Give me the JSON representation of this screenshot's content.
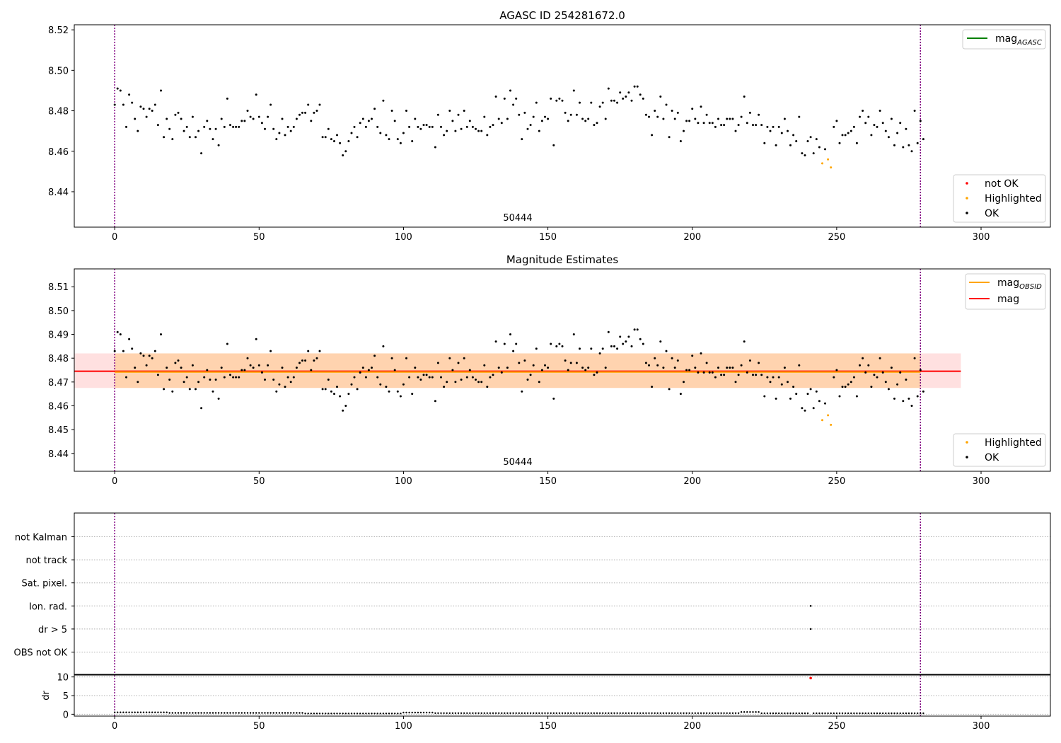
{
  "chart_data": [
    {
      "type": "scatter",
      "title": "AGASC ID 254281672.0",
      "xlim": [
        -14,
        324
      ],
      "ylim": [
        8.4225,
        8.5225
      ],
      "xticks": [
        0,
        50,
        100,
        150,
        200,
        250,
        300
      ],
      "yticks": [
        8.44,
        8.46,
        8.48,
        8.5,
        8.52
      ],
      "ytick_labels": [
        "8.44",
        "8.46",
        "8.48",
        "8.50",
        "8.52"
      ],
      "obsid_boundaries": [
        0,
        279
      ],
      "obsid_label": {
        "text": "50444",
        "x": 139
      },
      "legend_lines": [
        {
          "label": "mag",
          "sub": "AGASC",
          "color": "#008000"
        }
      ],
      "legend_points": [
        {
          "label": "not OK",
          "color": "#ff0000"
        },
        {
          "label": "Highlighted",
          "color": "#ffa500"
        },
        {
          "label": "OK",
          "color": "#000000"
        }
      ],
      "series": [
        {
          "name": "OK",
          "color": "#000000",
          "points": "0:8.483,1:8.491,2:8.490,3:8.483,4:8.472,5:8.488,6:8.484,7:8.476,8:8.470,9:8.482,10:8.481,11:8.477,12:8.481,13:8.480,14:8.483,15:8.473,16:8.490,17:8.467,18:8.476,19:8.471,20:8.466,21:8.478,22:8.479,23:8.476,24:8.470,25:8.472,26:8.467,27:8.477,28:8.467,29:8.470,30:8.459,31:8.472,32:8.475,33:8.471,34:8.466,35:8.471,36:8.463,37:8.476,38:8.472,39:8.486,40:8.473,41:8.472,42:8.472,43:8.472,44:8.475,45:8.475,46:8.480,47:8.477,48:8.476,49:8.488,50:8.477,51:8.474,52:8.471,53:8.477,54:8.483,55:8.471,56:8.466,57:8.469,58:8.476,59:8.468,60:8.472,61:8.470,62:8.472,63:8.476,64:8.478,65:8.479,66:8.479,67:8.483,68:8.475,69:8.479,70:8.480,71:8.483,72:8.467,73:8.467,74:8.471,75:8.466,76:8.465,77:8.468,78:8.464,79:8.458,80:8.460,81:8.465,82:8.469,83:8.472,84:8.467,85:8.474,86:8.476,87:8.472,88:8.475,89:8.476,90:8.481,91:8.472,92:8.469,93:8.485,94:8.468,95:8.466,96:8.480,97:8.475,98:8.466,99:8.464,100:8.469,101:8.480,102:8.472,103:8.465,104:8.476,105:8.472,106:8.471,107:8.473,108:8.473,109:8.472,110:8.472,111:8.462,112:8.478,113:8.472,114:8.468,115:8.470,116:8.480,117:8.475,118:8.470,119:8.478,120:8.471,121:8.480,122:8.472,123:8.475,124:8.472,125:8.471,126:8.470,127:8.470,128:8.477,129:8.468,130:8.472,131:8.473,132:8.487,133:8.476,134:8.474,135:8.486,136:8.476,137:8.490,138:8.483,139:8.486,140:8.478,141:8.466,142:8.479,143:8.471,144:8.473,145:8.477,146:8.484,147:8.470,148:8.475,149:8.477,150:8.476,151:8.486,152:8.463,153:8.485,154:8.486,155:8.485,156:8.479,157:8.475,158:8.478,159:8.490,160:8.478,161:8.484,162:8.476,163:8.475,164:8.476,165:8.484,166:8.473,167:8.474,168:8.482,169:8.484,170:8.476,171:8.491,172:8.485,173:8.485,174:8.484,175:8.489,176:8.486,177:8.487,178:8.489,179:8.485,180:8.492,181:8.492,182:8.488,183:8.486,184:8.478,185:8.477,186:8.468,187:8.480,188:8.477,189:8.487,190:8.476,191:8.483,192:8.467,193:8.480,194:8.476,195:8.479,196:8.465,197:8.470,198:8.475,199:8.475,200:8.481,201:8.476,202:8.474,203:8.482,204:8.474,205:8.478,206:8.474,207:8.474,208:8.472,209:8.476,210:8.473,211:8.473,212:8.476,213:8.476,214:8.476,215:8.470,216:8.473,217:8.477,218:8.487,219:8.474,220:8.479,221:8.473,222:8.473,223:8.478,224:8.473,225:8.464,226:8.472,227:8.470,228:8.472,229:8.463,230:8.472,231:8.469,232:8.476,233:8.470,234:8.463,235:8.468,236:8.465,237:8.477,238:8.459,239:8.458,240:8.465,241:8.467,242:8.459,243:8.466,244:8.462,246:8.461,249:8.472,250:8.475,251:8.464,252:8.468,253:8.468,254:8.469,255:8.470,256:8.472,257:8.464,258:8.477,259:8.480,260:8.474,261:8.477,262:8.468,263:8.473,264:8.472,265:8.480,266:8.474,267:8.470,268:8.467,269:8.476,270:8.463,271:8.469,272:8.474,273:8.462,274:8.471,275:8.463,276:8.460,277:8.480,278:8.464,279:8.475,280:8.466"
        },
        {
          "name": "Highlighted",
          "color": "#ffa500",
          "points": "245:8.454,247:8.456,248:8.452"
        }
      ]
    },
    {
      "type": "scatter",
      "title": "Magnitude Estimates",
      "xlim": [
        -14,
        324
      ],
      "ylim": [
        8.4325,
        8.5175
      ],
      "xticks": [
        0,
        50,
        100,
        150,
        200,
        250,
        300
      ],
      "yticks": [
        8.44,
        8.45,
        8.46,
        8.47,
        8.48,
        8.49,
        8.5,
        8.51
      ],
      "ytick_labels": [
        "8.44",
        "8.45",
        "8.46",
        "8.47",
        "8.48",
        "8.49",
        "8.50",
        "8.51"
      ],
      "obsid_boundaries": [
        0,
        279
      ],
      "obsid_label": {
        "text": "50444",
        "x": 139
      },
      "mag_band": {
        "x": [
          -14,
          293
        ],
        "low": 8.4675,
        "high": 8.482,
        "mean": 8.4745
      },
      "obsid_band": {
        "x": [
          0,
          279
        ],
        "low": 8.4675,
        "high": 8.482,
        "mean": 8.4742
      },
      "legend_lines": [
        {
          "label": "mag",
          "sub": "OBSID",
          "color": "#ffa500"
        },
        {
          "label": "mag",
          "sub": "",
          "color": "#ff0000"
        }
      ],
      "legend_points": [
        {
          "label": "Highlighted",
          "color": "#ffa500"
        },
        {
          "label": "OK",
          "color": "#000000"
        }
      ],
      "series": [
        {
          "name": "OK",
          "color": "#000000",
          "points": "0:8.483,1:8.491,2:8.490,3:8.483,4:8.472,5:8.488,6:8.484,7:8.476,8:8.470,9:8.482,10:8.481,11:8.477,12:8.481,13:8.480,14:8.483,15:8.473,16:8.490,17:8.467,18:8.476,19:8.471,20:8.466,21:8.478,22:8.479,23:8.476,24:8.470,25:8.472,26:8.467,27:8.477,28:8.467,29:8.470,30:8.459,31:8.472,32:8.475,33:8.471,34:8.466,35:8.471,36:8.463,37:8.476,38:8.472,39:8.486,40:8.473,41:8.472,42:8.472,43:8.472,44:8.475,45:8.475,46:8.480,47:8.477,48:8.476,49:8.488,50:8.477,51:8.474,52:8.471,53:8.477,54:8.483,55:8.471,56:8.466,57:8.469,58:8.476,59:8.468,60:8.472,61:8.470,62:8.472,63:8.476,64:8.478,65:8.479,66:8.479,67:8.483,68:8.475,69:8.479,70:8.480,71:8.483,72:8.467,73:8.467,74:8.471,75:8.466,76:8.465,77:8.468,78:8.464,79:8.458,80:8.460,81:8.465,82:8.469,83:8.472,84:8.467,85:8.474,86:8.476,87:8.472,88:8.475,89:8.476,90:8.481,91:8.472,92:8.469,93:8.485,94:8.468,95:8.466,96:8.480,97:8.475,98:8.466,99:8.464,100:8.469,101:8.480,102:8.472,103:8.465,104:8.476,105:8.472,106:8.471,107:8.473,108:8.473,109:8.472,110:8.472,111:8.462,112:8.478,113:8.472,114:8.468,115:8.470,116:8.480,117:8.475,118:8.470,119:8.478,120:8.471,121:8.480,122:8.472,123:8.475,124:8.472,125:8.471,126:8.470,127:8.470,128:8.477,129:8.468,130:8.472,131:8.473,132:8.487,133:8.476,134:8.474,135:8.486,136:8.476,137:8.490,138:8.483,139:8.486,140:8.478,141:8.466,142:8.479,143:8.471,144:8.473,145:8.477,146:8.484,147:8.470,148:8.475,149:8.477,150:8.476,151:8.486,152:8.463,153:8.485,154:8.486,155:8.485,156:8.479,157:8.475,158:8.478,159:8.490,160:8.478,161:8.484,162:8.476,163:8.475,164:8.476,165:8.484,166:8.473,167:8.474,168:8.482,169:8.484,170:8.476,171:8.491,172:8.485,173:8.485,174:8.484,175:8.489,176:8.486,177:8.487,178:8.489,179:8.485,180:8.492,181:8.492,182:8.488,183:8.486,184:8.478,185:8.477,186:8.468,187:8.480,188:8.477,189:8.487,190:8.476,191:8.483,192:8.467,193:8.480,194:8.476,195:8.479,196:8.465,197:8.470,198:8.475,199:8.475,200:8.481,201:8.476,202:8.474,203:8.482,204:8.474,205:8.478,206:8.474,207:8.474,208:8.472,209:8.476,210:8.473,211:8.473,212:8.476,213:8.476,214:8.476,215:8.470,216:8.473,217:8.477,218:8.487,219:8.474,220:8.479,221:8.473,222:8.473,223:8.478,224:8.473,225:8.464,226:8.472,227:8.470,228:8.472,229:8.463,230:8.472,231:8.469,232:8.476,233:8.470,234:8.463,235:8.468,236:8.465,237:8.477,238:8.459,239:8.458,240:8.465,241:8.467,242:8.459,243:8.466,244:8.462,246:8.461,249:8.472,250:8.475,251:8.464,252:8.468,253:8.468,254:8.469,255:8.470,256:8.472,257:8.464,258:8.477,259:8.480,260:8.474,261:8.477,262:8.468,263:8.473,264:8.472,265:8.480,266:8.474,267:8.470,268:8.467,269:8.476,270:8.463,271:8.469,272:8.474,273:8.462,274:8.471,275:8.463,276:8.460,277:8.480,278:8.464,279:8.475,280:8.466"
        },
        {
          "name": "Highlighted",
          "color": "#ffa500",
          "points": "245:8.454,247:8.456,248:8.452"
        }
      ]
    },
    {
      "type": "scatter",
      "title": "",
      "xlim": [
        -14,
        324
      ],
      "xticks": [
        0,
        50,
        100,
        150,
        200,
        250,
        300
      ],
      "obsid_boundaries": [
        0,
        279
      ],
      "flag_rows": [
        "not Kalman",
        "not track",
        "Sat. pixel.",
        "Ion. rad.",
        "dr > 5",
        "OBS not OK"
      ],
      "flag_points": [
        {
          "row": "Ion. rad.",
          "x": 241
        },
        {
          "row": "dr > 5",
          "x": 241
        }
      ],
      "dr": {
        "ylabel": "dr",
        "ylim": [
          -0.5,
          10.5
        ],
        "yticks": [
          0,
          5,
          10
        ],
        "ytick_labels": [
          "0",
          "5",
          "10"
        ],
        "outlier": {
          "x": 241,
          "value": 9.7,
          "color": "#ff0000"
        },
        "baseline_segments": [
          {
            "from": 0,
            "to": 18,
            "value": 0.5
          },
          {
            "from": 19,
            "to": 65,
            "value": 0.35
          },
          {
            "from": 66,
            "to": 99,
            "value": 0.2
          },
          {
            "from": 100,
            "to": 110,
            "value": 0.45
          },
          {
            "from": 111,
            "to": 216,
            "value": 0.3
          },
          {
            "from": 217,
            "to": 223,
            "value": 0.6
          },
          {
            "from": 224,
            "to": 280,
            "value": 0.25
          }
        ]
      }
    }
  ]
}
